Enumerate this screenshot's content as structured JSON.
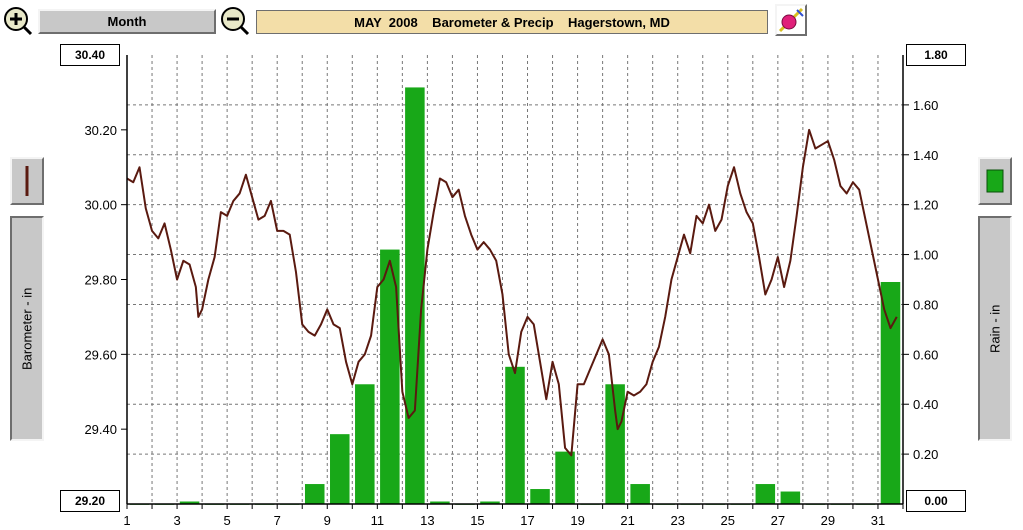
{
  "header": {
    "month_label": "Month",
    "title": "MAY  2008    Barometer & Precip    Hagerstown, MD"
  },
  "icons": {
    "zoom_in": "zoom-in-icon",
    "zoom_out": "zoom-out-icon",
    "eraser": "eraser-icon"
  },
  "side": {
    "left_label": "Barometer - in",
    "right_label": "Rain - in"
  },
  "value_boxes": {
    "left_top": "30.40",
    "left_bottom": "29.20",
    "right_top": "1.80",
    "right_bottom": "0.00"
  },
  "colors": {
    "baro_line": "#5a1a10",
    "rain_bar": "#18a818",
    "title_bg": "#f3dea8",
    "button_face": "#c8c8c8"
  },
  "chart_data": {
    "type": "bar+line",
    "title": "MAY  2008    Barometer & Precip    Hagerstown, MD",
    "x_tick_labels": [
      "1",
      "3",
      "5",
      "7",
      "9",
      "11",
      "13",
      "15",
      "17",
      "19",
      "21",
      "23",
      "25",
      "27",
      "29",
      "31"
    ],
    "xlim": [
      1,
      32
    ],
    "grid": true,
    "ylabel_left": "Barometer - in",
    "ylabel_right": "Rain - in",
    "ylim_left": [
      29.2,
      30.4
    ],
    "ylim_right": [
      0.0,
      1.8
    ],
    "y_left_ticks": [
      "30.20",
      "30.00",
      "29.80",
      "29.60",
      "29.40"
    ],
    "y_right_ticks": [
      "1.60",
      "1.40",
      "1.20",
      "1.00",
      "0.80",
      "0.60",
      "0.40",
      "0.20"
    ],
    "rain_series": {
      "name": "Rain - in",
      "days": [
        1,
        2,
        3,
        4,
        5,
        6,
        7,
        8,
        9,
        10,
        11,
        12,
        13,
        14,
        15,
        16,
        17,
        18,
        19,
        20,
        21,
        22,
        23,
        24,
        25,
        26,
        27,
        28,
        29,
        30,
        31
      ],
      "values": [
        0.0,
        0.0,
        0.01,
        0.0,
        0.0,
        0.0,
        0.0,
        0.08,
        0.28,
        0.48,
        1.02,
        1.67,
        0.01,
        0.0,
        0.01,
        0.55,
        0.06,
        0.21,
        0.0,
        0.48,
        0.08,
        0.0,
        0.0,
        0.0,
        0.0,
        0.08,
        0.05,
        0.0,
        0.0,
        0.0,
        0.89
      ]
    },
    "baro_series": {
      "name": "Barometer - in",
      "points": [
        [
          1.0,
          30.07
        ],
        [
          1.25,
          30.06
        ],
        [
          1.5,
          30.1
        ],
        [
          1.75,
          29.99
        ],
        [
          2.0,
          29.93
        ],
        [
          2.25,
          29.91
        ],
        [
          2.5,
          29.95
        ],
        [
          2.75,
          29.88
        ],
        [
          3.0,
          29.8
        ],
        [
          3.25,
          29.85
        ],
        [
          3.5,
          29.84
        ],
        [
          3.75,
          29.78
        ],
        [
          3.85,
          29.7
        ],
        [
          4.0,
          29.72
        ],
        [
          4.25,
          29.8
        ],
        [
          4.5,
          29.86
        ],
        [
          4.75,
          29.98
        ],
        [
          5.0,
          29.97
        ],
        [
          5.25,
          30.01
        ],
        [
          5.5,
          30.03
        ],
        [
          5.75,
          30.08
        ],
        [
          6.0,
          30.02
        ],
        [
          6.25,
          29.96
        ],
        [
          6.5,
          29.97
        ],
        [
          6.75,
          30.01
        ],
        [
          7.0,
          29.93
        ],
        [
          7.25,
          29.93
        ],
        [
          7.5,
          29.92
        ],
        [
          7.75,
          29.82
        ],
        [
          8.0,
          29.68
        ],
        [
          8.25,
          29.66
        ],
        [
          8.5,
          29.65
        ],
        [
          8.75,
          29.68
        ],
        [
          9.0,
          29.72
        ],
        [
          9.25,
          29.68
        ],
        [
          9.5,
          29.67
        ],
        [
          9.75,
          29.58
        ],
        [
          10.0,
          29.52
        ],
        [
          10.25,
          29.58
        ],
        [
          10.5,
          29.6
        ],
        [
          10.75,
          29.65
        ],
        [
          11.0,
          29.78
        ],
        [
          11.25,
          29.8
        ],
        [
          11.5,
          29.85
        ],
        [
          11.75,
          29.78
        ],
        [
          12.0,
          29.5
        ],
        [
          12.25,
          29.43
        ],
        [
          12.5,
          29.45
        ],
        [
          12.75,
          29.72
        ],
        [
          13.0,
          29.88
        ],
        [
          13.25,
          29.98
        ],
        [
          13.5,
          30.07
        ],
        [
          13.75,
          30.06
        ],
        [
          14.0,
          30.02
        ],
        [
          14.25,
          30.04
        ],
        [
          14.5,
          29.97
        ],
        [
          14.75,
          29.92
        ],
        [
          15.0,
          29.88
        ],
        [
          15.25,
          29.9
        ],
        [
          15.5,
          29.88
        ],
        [
          15.75,
          29.85
        ],
        [
          16.0,
          29.76
        ],
        [
          16.25,
          29.6
        ],
        [
          16.5,
          29.55
        ],
        [
          16.75,
          29.66
        ],
        [
          17.0,
          29.7
        ],
        [
          17.25,
          29.68
        ],
        [
          17.5,
          29.58
        ],
        [
          17.75,
          29.48
        ],
        [
          18.0,
          29.58
        ],
        [
          18.25,
          29.52
        ],
        [
          18.5,
          29.35
        ],
        [
          18.75,
          29.33
        ],
        [
          19.0,
          29.52
        ],
        [
          19.25,
          29.52
        ],
        [
          19.5,
          29.56
        ],
        [
          19.75,
          29.6
        ],
        [
          20.0,
          29.64
        ],
        [
          20.25,
          29.6
        ],
        [
          20.5,
          29.45
        ],
        [
          20.6,
          29.4
        ],
        [
          20.75,
          29.42
        ],
        [
          21.0,
          29.5
        ],
        [
          21.25,
          29.49
        ],
        [
          21.5,
          29.5
        ],
        [
          21.75,
          29.52
        ],
        [
          22.0,
          29.58
        ],
        [
          22.25,
          29.62
        ],
        [
          22.5,
          29.7
        ],
        [
          22.75,
          29.8
        ],
        [
          23.0,
          29.86
        ],
        [
          23.25,
          29.92
        ],
        [
          23.5,
          29.87
        ],
        [
          23.75,
          29.97
        ],
        [
          24.0,
          29.95
        ],
        [
          24.25,
          30.0
        ],
        [
          24.5,
          29.93
        ],
        [
          24.75,
          29.96
        ],
        [
          25.0,
          30.05
        ],
        [
          25.25,
          30.1
        ],
        [
          25.5,
          30.03
        ],
        [
          25.75,
          29.98
        ],
        [
          26.0,
          29.95
        ],
        [
          26.25,
          29.86
        ],
        [
          26.5,
          29.76
        ],
        [
          26.75,
          29.8
        ],
        [
          27.0,
          29.86
        ],
        [
          27.25,
          29.78
        ],
        [
          27.5,
          29.85
        ],
        [
          27.75,
          29.97
        ],
        [
          28.0,
          30.1
        ],
        [
          28.25,
          30.2
        ],
        [
          28.5,
          30.15
        ],
        [
          28.75,
          30.16
        ],
        [
          29.0,
          30.17
        ],
        [
          29.25,
          30.12
        ],
        [
          29.5,
          30.05
        ],
        [
          29.75,
          30.03
        ],
        [
          30.0,
          30.06
        ],
        [
          30.25,
          30.04
        ],
        [
          30.5,
          29.96
        ],
        [
          30.75,
          29.88
        ],
        [
          31.0,
          29.8
        ],
        [
          31.25,
          29.72
        ],
        [
          31.5,
          29.67
        ],
        [
          31.75,
          29.7
        ]
      ]
    }
  }
}
